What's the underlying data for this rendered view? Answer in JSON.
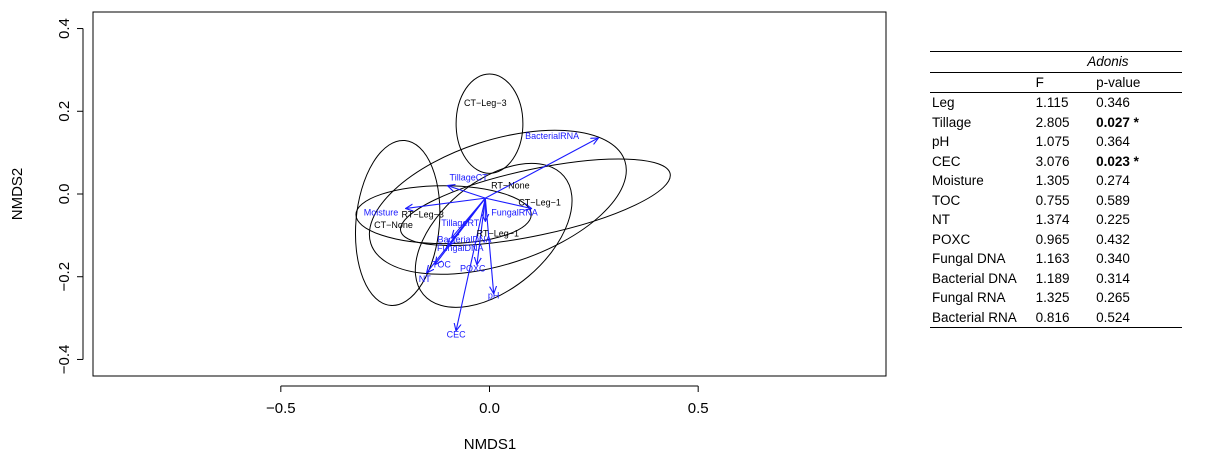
{
  "chart_data": {
    "type": "scatter",
    "xlabel": "NMDS1",
    "ylabel": "NMDS2",
    "xlim": [
      -0.95,
      0.95
    ],
    "ylim": [
      -0.44,
      0.44
    ],
    "x_ticks": [
      -0.5,
      0.0,
      0.5
    ],
    "y_ticks": [
      -0.4,
      -0.2,
      0.0,
      0.2,
      0.4
    ],
    "x_tick_labels": [
      "−0.5",
      "0.0",
      "0.5"
    ],
    "y_tick_labels": [
      "−0.4",
      "−0.2",
      "0.0",
      "0.2",
      "0.4"
    ],
    "grid": false,
    "ellipses": [
      {
        "label": "CT−Leg−3",
        "cx": 0.0,
        "cy": 0.17,
        "rx": 0.08,
        "ry": 0.12,
        "rotation": 0,
        "label_x": -0.01,
        "label_y": 0.22
      },
      {
        "label": "RT−None",
        "cx": 0.02,
        "cy": -0.02,
        "rx": 0.32,
        "ry": 0.15,
        "rotation": -18,
        "label_x": 0.05,
        "label_y": 0.02
      },
      {
        "label": "CT−Leg−1",
        "cx": 0.11,
        "cy": -0.02,
        "rx": 0.33,
        "ry": 0.08,
        "rotation": -12,
        "label_x": 0.12,
        "label_y": -0.02
      },
      {
        "label": "RT−Leg−3",
        "cx": -0.11,
        "cy": -0.05,
        "rx": 0.21,
        "ry": 0.07,
        "rotation": 0,
        "label_x": -0.16,
        "label_y": -0.05
      },
      {
        "label": "CT−None",
        "cx": -0.22,
        "cy": -0.07,
        "rx": 0.1,
        "ry": 0.2,
        "rotation": 5,
        "label_x": -0.23,
        "label_y": -0.075
      },
      {
        "label": "RT−Leg−1",
        "cx": 0.01,
        "cy": -0.1,
        "rx": 0.22,
        "ry": 0.13,
        "rotation": -40,
        "label_x": 0.02,
        "label_y": -0.095
      }
    ],
    "vectors": [
      {
        "label": "BacterialRNA",
        "x": 0.26,
        "y": 0.135,
        "label_x": 0.15,
        "label_y": 0.14
      },
      {
        "label": "TillageCT",
        "x": -0.1,
        "y": 0.02,
        "label_x": -0.05,
        "label_y": 0.04
      },
      {
        "label": "Moisture",
        "x": -0.2,
        "y": -0.035,
        "label_x": -0.26,
        "label_y": -0.045
      },
      {
        "label": "TillageRT",
        "x": -0.01,
        "y": -0.065,
        "label_x": -0.07,
        "label_y": -0.07
      },
      {
        "label": "FungalRNA",
        "x": 0.1,
        "y": -0.035,
        "label_x": 0.06,
        "label_y": -0.045
      },
      {
        "label": "BacterialDNA",
        "x": -0.09,
        "y": -0.105,
        "label_x": -0.06,
        "label_y": -0.11
      },
      {
        "label": "FungalDNA",
        "x": -0.1,
        "y": -0.125,
        "label_x": -0.07,
        "label_y": -0.13
      },
      {
        "label": "TOC",
        "x": -0.13,
        "y": -0.17,
        "label_x": -0.115,
        "label_y": -0.17
      },
      {
        "label": "NT",
        "x": -0.15,
        "y": -0.19,
        "label_x": -0.155,
        "label_y": -0.205
      },
      {
        "label": "POXC",
        "x": -0.03,
        "y": -0.17,
        "label_x": -0.04,
        "label_y": -0.18
      },
      {
        "label": "pH",
        "x": 0.01,
        "y": -0.24,
        "label_x": 0.01,
        "label_y": -0.245
      },
      {
        "label": "CEC",
        "x": -0.08,
        "y": -0.33,
        "label_x": -0.08,
        "label_y": -0.34
      }
    ],
    "vector_origin": [
      -0.01,
      -0.01
    ],
    "colors": {
      "ellipse": "#000000",
      "vector": "#1a1aff",
      "site_label": "#000000"
    }
  },
  "table": {
    "title": "Adonis",
    "columns": [
      "",
      "F",
      "p-value"
    ],
    "rows": [
      {
        "term": "Leg",
        "F": "1.115",
        "p": "0.346",
        "sig": false
      },
      {
        "term": "Tillage",
        "F": "2.805",
        "p": "0.027 *",
        "sig": true
      },
      {
        "term": "pH",
        "F": "1.075",
        "p": "0.364",
        "sig": false
      },
      {
        "term": "CEC",
        "F": "3.076",
        "p": "0.023 *",
        "sig": true
      },
      {
        "term": "Moisture",
        "F": "1.305",
        "p": "0.274",
        "sig": false
      },
      {
        "term": "TOC",
        "F": "0.755",
        "p": "0.589",
        "sig": false
      },
      {
        "term": "NT",
        "F": "1.374",
        "p": "0.225",
        "sig": false
      },
      {
        "term": "POXC",
        "F": "0.965",
        "p": "0.432",
        "sig": false
      },
      {
        "term": "Fungal DNA",
        "F": "1.163",
        "p": "0.340",
        "sig": false
      },
      {
        "term": "Bacterial DNA",
        "F": "1.189",
        "p": "0.314",
        "sig": false
      },
      {
        "term": "Fungal RNA",
        "F": "1.325",
        "p": "0.265",
        "sig": false
      },
      {
        "term": "Bacterial RNA",
        "F": "0.816",
        "p": "0.524",
        "sig": false
      }
    ]
  }
}
